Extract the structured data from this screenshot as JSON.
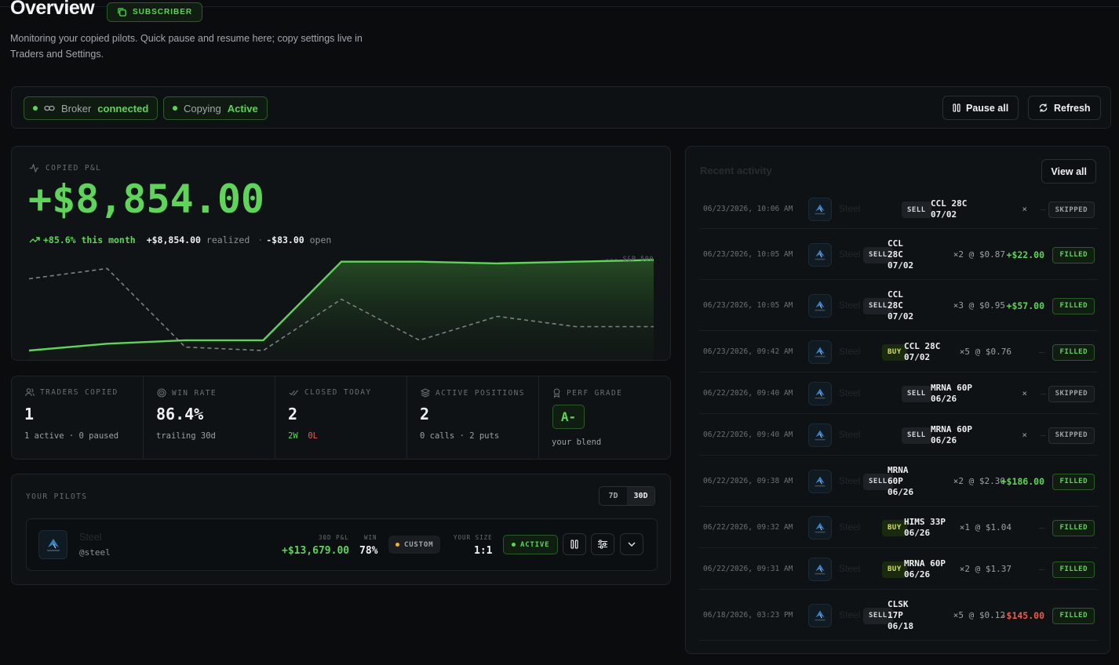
{
  "header": {
    "title": "Overview",
    "badge": "SUBSCRIBER",
    "subtitle": "Monitoring your copied pilots. Quick pause and resume here; copy settings live in Traders and Settings."
  },
  "status_bar": {
    "broker_label": "Broker",
    "broker_value": "connected",
    "copying_label": "Copying",
    "copying_value": "Active",
    "pause_all": "Pause all",
    "refresh": "Refresh"
  },
  "pnl": {
    "label": "COPIED P&L",
    "value": "+$8,854.00",
    "change": "+85.6% this month",
    "realized_value": "+$8,854.00",
    "realized_label": "realized",
    "open_value": "-$83.00",
    "open_label": "open",
    "benchmark_label": "--- S&P 500",
    "chart": {
      "portfolio": [
        0,
        2,
        3,
        3,
        26,
        26,
        25.5,
        26,
        26.5
      ],
      "benchmark": [
        21,
        24,
        1,
        0,
        15,
        3,
        10,
        7,
        7
      ]
    }
  },
  "stats": {
    "traders": {
      "label": "TRADERS COPIED",
      "value": "1",
      "note": "1 active · 0 paused"
    },
    "win_rate": {
      "label": "WIN RATE",
      "value": "86.4%",
      "note": "trailing 30d"
    },
    "closed": {
      "label": "CLOSED TODAY",
      "value": "2",
      "wins": "2W",
      "losses": "0L"
    },
    "positions": {
      "label": "ACTIVE POSITIONS",
      "value": "2",
      "note": "0 calls · 2 puts"
    },
    "grade": {
      "label": "PERF GRADE",
      "value": "A-",
      "note": "your blend"
    }
  },
  "pilots": {
    "label": "YOUR PILOTS",
    "range_7d": "7D",
    "range_30d": "30D",
    "pilot": {
      "name": "Steel",
      "handle": "@steel",
      "pnl_label": "30D P&L",
      "pnl_value": "+$13,679.00",
      "win_label": "WIN",
      "win_value": "78%",
      "mode": "CUSTOM",
      "size_label": "YOUR SIZE",
      "size_value": "1:1",
      "status": "ACTIVE"
    }
  },
  "activity": {
    "title": "Recent activity",
    "view_all": "View all",
    "rows": [
      {
        "ts": "06/23/2026, 10:06 AM",
        "who": "Steel",
        "side": "SELL",
        "contract": [
          "CCL 28C",
          "07/02"
        ],
        "qty": "×",
        "amount": "—",
        "amount_kind": "dash",
        "status": "SKIPPED"
      },
      {
        "ts": "06/23/2026, 10:05 AM",
        "who": "Steel",
        "side": "SELL",
        "contract": [
          "CCL",
          "28C",
          "07/02"
        ],
        "qty": "×2 @ $0.87",
        "amount": "+$22.00",
        "amount_kind": "pos",
        "status": "FILLED"
      },
      {
        "ts": "06/23/2026, 10:05 AM",
        "who": "Steel",
        "side": "SELL",
        "contract": [
          "CCL",
          "28C",
          "07/02"
        ],
        "qty": "×3 @ $0.95",
        "amount": "+$57.00",
        "amount_kind": "pos",
        "status": "FILLED"
      },
      {
        "ts": "06/23/2026, 09:42 AM",
        "who": "Steel",
        "side": "BUY",
        "contract": [
          "CCL 28C",
          "07/02"
        ],
        "qty": "×5 @ $0.76",
        "amount": "—",
        "amount_kind": "dash",
        "status": "FILLED"
      },
      {
        "ts": "06/22/2026, 09:40 AM",
        "who": "Steel",
        "side": "SELL",
        "contract": [
          "MRNA 60P",
          "06/26"
        ],
        "qty": "×",
        "amount": "—",
        "amount_kind": "dash",
        "status": "SKIPPED"
      },
      {
        "ts": "06/22/2026, 09:40 AM",
        "who": "Steel",
        "side": "SELL",
        "contract": [
          "MRNA 60P",
          "06/26"
        ],
        "qty": "×",
        "amount": "—",
        "amount_kind": "dash",
        "status": "SKIPPED"
      },
      {
        "ts": "06/22/2026, 09:38 AM",
        "who": "Steel",
        "side": "SELL",
        "contract": [
          "MRNA",
          "60P",
          "06/26"
        ],
        "qty": "×2 @ $2.30",
        "amount": "+$186.00",
        "amount_kind": "pos",
        "status": "FILLED"
      },
      {
        "ts": "06/22/2026, 09:32 AM",
        "who": "Steel",
        "side": "BUY",
        "contract": [
          "HIMS 33P",
          "06/26"
        ],
        "qty": "×1 @ $1.04",
        "amount": "—",
        "amount_kind": "dash",
        "status": "FILLED"
      },
      {
        "ts": "06/22/2026, 09:31 AM",
        "who": "Steel",
        "side": "BUY",
        "contract": [
          "MRNA 60P",
          "06/26"
        ],
        "qty": "×2 @ $1.37",
        "amount": "—",
        "amount_kind": "dash",
        "status": "FILLED"
      },
      {
        "ts": "06/18/2026, 03:23 PM",
        "who": "Steel",
        "side": "SELL",
        "contract": [
          "CLSK",
          "17P",
          "06/18"
        ],
        "qty": "×5 @ $0.12",
        "amount": "-$145.00",
        "amount_kind": "neg",
        "status": "FILLED"
      }
    ]
  }
}
